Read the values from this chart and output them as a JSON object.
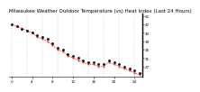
{
  "title": "Milwaukee Weather Outdoor Temperature (vs) Heat Index (Last 24 Hours)",
  "temp_values": [
    47,
    46,
    45,
    44,
    43,
    42,
    41,
    40,
    38,
    36,
    35,
    33,
    32,
    31,
    30,
    29,
    29,
    28,
    28,
    30,
    29,
    28,
    27,
    26,
    25,
    24
  ],
  "heat_index": [
    47,
    46,
    45,
    44,
    43,
    41,
    40,
    39,
    37,
    35,
    34,
    32,
    31,
    30,
    29,
    28,
    28,
    27,
    27,
    29,
    28,
    27,
    26,
    25,
    24,
    23
  ],
  "ylim": [
    22,
    52
  ],
  "yticks": [
    27,
    31,
    35,
    39,
    43,
    47,
    51
  ],
  "background_color": "#ffffff",
  "temp_color": "#000000",
  "heat_color": "#ff0000",
  "grid_color": "#999999",
  "title_fontsize": 4.0,
  "tick_fontsize": 3.0,
  "num_points": 26
}
